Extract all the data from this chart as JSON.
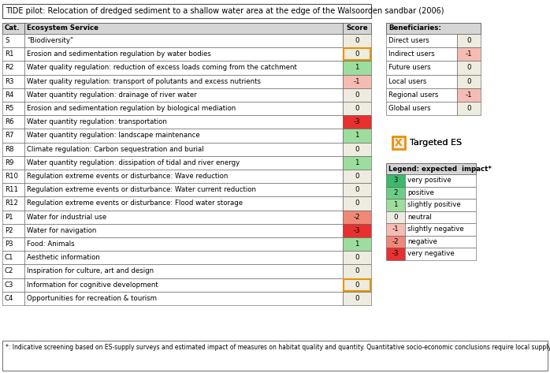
{
  "title": "TIDE pilot: Relocation of dredged sediment to a shallow water area at the edge of the Walsoorden sandbar (2006)",
  "footnote": "*: Indicative screening based on ES-supply surveys and estimated impact of measures on habitat quality and quantity. Quantitative socio-economic conclusions require local supply and demand data to complement this assessment.",
  "main_rows": [
    [
      "S",
      "\"Biodiversity\"",
      0,
      false
    ],
    [
      "R1",
      "Erosion and sedimentation regulation by water bodies",
      0,
      true
    ],
    [
      "R2",
      "Water quality regulation: reduction of excess loads coming from the catchment",
      1,
      false
    ],
    [
      "R3",
      "Water quality regulation: transport of polutants and excess nutrients",
      -1,
      false
    ],
    [
      "R4",
      "Water quantity regulation: drainage of river water",
      0,
      false
    ],
    [
      "R5",
      "Erosion and sedimentation regulation by biological mediation",
      0,
      false
    ],
    [
      "R6",
      "Water quantity regulation: transportation",
      -3,
      false
    ],
    [
      "R7",
      "Water quantity regulation: landscape maintenance",
      1,
      false
    ],
    [
      "R8",
      "Climate regulation: Carbon sequestration and burial",
      0,
      false
    ],
    [
      "R9",
      "Water quantity regulation: dissipation of tidal and river energy",
      1,
      false
    ],
    [
      "R10",
      "Regulation extreme events or disturbance: Wave reduction",
      0,
      false
    ],
    [
      "R11",
      "Regulation extreme events or disturbance: Water current reduction",
      0,
      false
    ],
    [
      "R12",
      "Regulation extreme events or disturbance: Flood water storage",
      0,
      false
    ],
    [
      "P1",
      "Water for industrial use",
      -2,
      false
    ],
    [
      "P2",
      "Water for navigation",
      -3,
      false
    ],
    [
      "P3",
      "Food: Animals",
      1,
      false
    ],
    [
      "C1",
      "Aesthetic information",
      0,
      false
    ],
    [
      "C2",
      "Inspiration for culture, art and design",
      0,
      false
    ],
    [
      "C3",
      "Information for cognitive development",
      0,
      true
    ],
    [
      "C4",
      "Opportunities for recreation & tourism",
      0,
      false
    ]
  ],
  "bene_rows": [
    [
      "Direct users",
      0
    ],
    [
      "Indirect users",
      -1
    ],
    [
      "Future users",
      0
    ],
    [
      "Local users",
      0
    ],
    [
      "Regional users",
      -1
    ],
    [
      "Global users",
      0
    ]
  ],
  "legend_rows": [
    [
      3,
      "very positive"
    ],
    [
      2,
      "positive"
    ],
    [
      1,
      "slightly positive"
    ],
    [
      0,
      "neutral"
    ],
    [
      -1,
      "slightly negative"
    ],
    [
      -2,
      "negative"
    ],
    [
      -3,
      "very negative"
    ]
  ],
  "score_colors": {
    "3": "#3cb96a",
    "2": "#6dcc88",
    "1": "#9ddd9d",
    "0": "#eeebe0",
    "-1": "#f5bcb4",
    "-2": "#f08878",
    "-3": "#e83030"
  },
  "header_bg": "#d5d5d5",
  "targeted_color": "#e8920a",
  "border_color": "#555555",
  "font_size": 6.2,
  "title_font_size": 7.0
}
